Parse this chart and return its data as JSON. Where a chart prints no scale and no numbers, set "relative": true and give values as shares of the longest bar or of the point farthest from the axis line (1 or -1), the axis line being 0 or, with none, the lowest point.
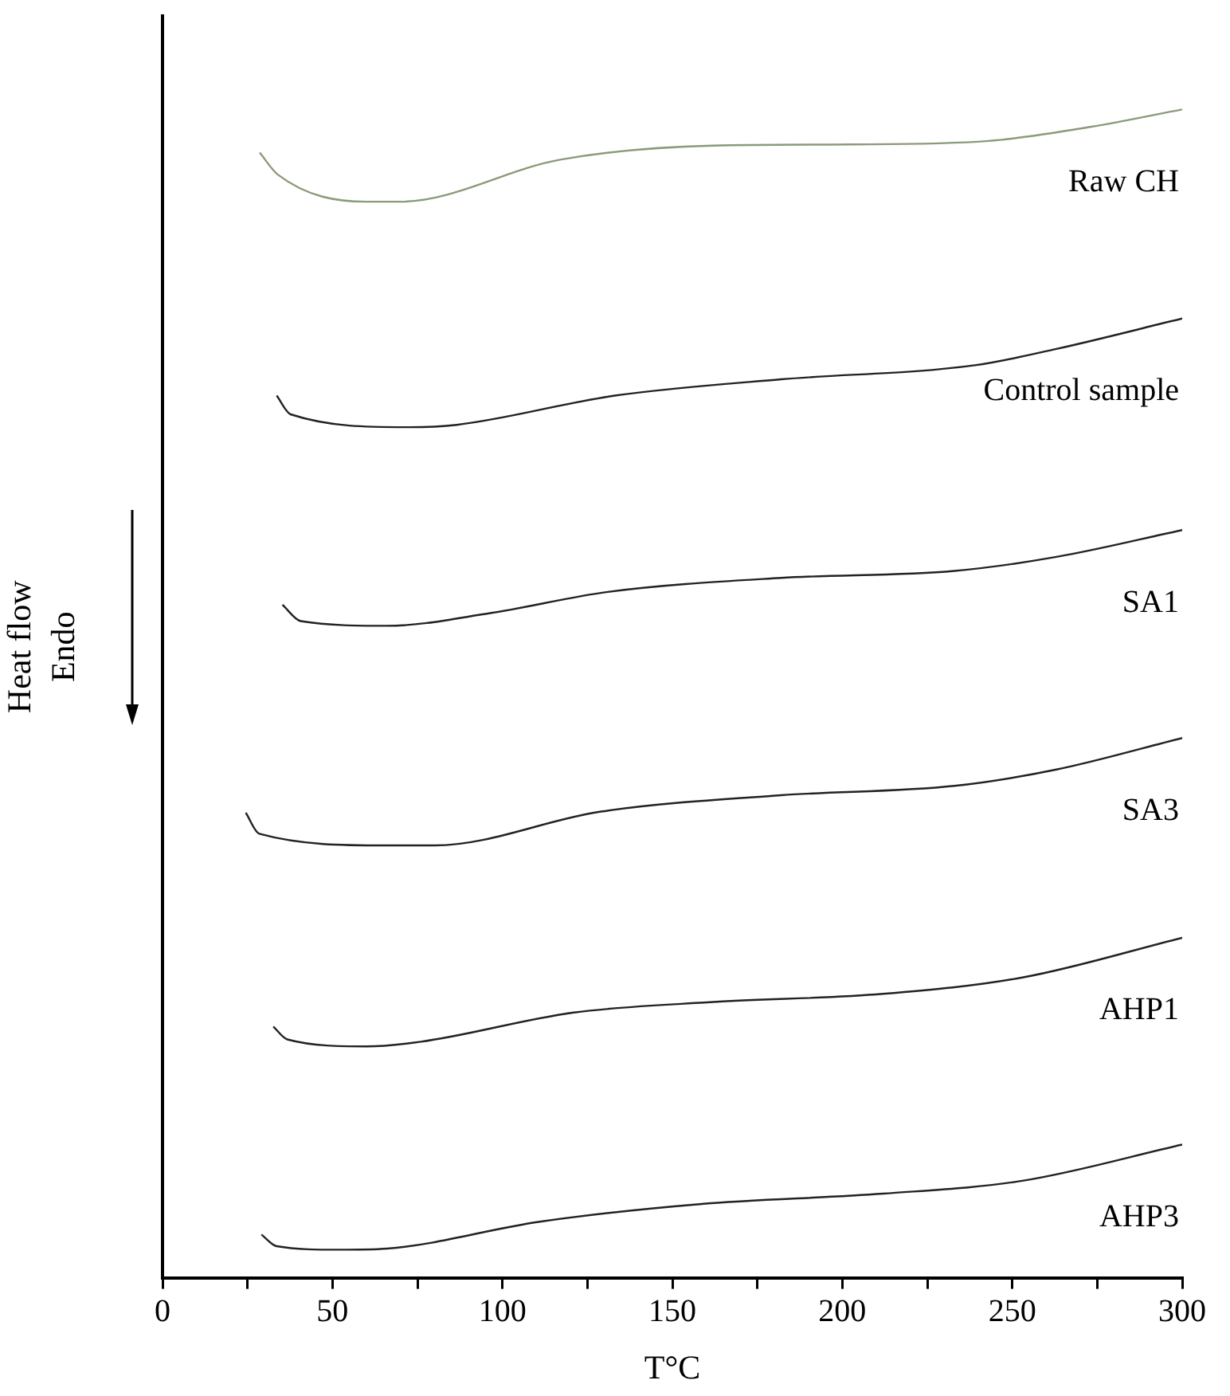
{
  "chart_data": {
    "type": "line",
    "xlabel": "T°C",
    "ylabel": "Heat flow\nEndo",
    "relative": true,
    "legend": false,
    "grid": false,
    "marker": "none",
    "line_style": "solid",
    "xlim": [
      0,
      300
    ],
    "xticks": [
      0,
      {
        "value": 25,
        "label": null
      },
      50,
      {
        "value": 75,
        "label": null
      },
      100,
      {
        "value": 125,
        "label": null
      },
      150,
      {
        "value": 175,
        "label": null
      },
      200,
      {
        "value": 225,
        "label": null
      },
      250,
      {
        "value": 275,
        "label": null
      },
      300
    ],
    "series": [
      {
        "name": "Raw CH",
        "color": "#8a9a7a",
        "x": [
          28.6,
          34,
          60,
          70,
          117,
          162,
          202,
          243,
          273,
          300
        ],
        "values": [
          0.963,
          0.944,
          0.921,
          0.921,
          0.957,
          0.969,
          0.97,
          0.973,
          0.985,
          1
        ]
      },
      {
        "name": "Control sample",
        "color": "#222222",
        "x": [
          33.6,
          37.7,
          72.3,
          86.5,
          133,
          182,
          239,
          263,
          300
        ],
        "values": [
          0.755,
          0.739,
          0.728,
          0.73,
          0.755,
          0.769,
          0.781,
          0.795,
          0.821
        ]
      },
      {
        "name": "SA1",
        "color": "#222222",
        "x": [
          35.3,
          40.7,
          66,
          96.7,
          131,
          182,
          233,
          263,
          300
        ],
        "values": [
          0.576,
          0.562,
          0.558,
          0.569,
          0.587,
          0.599,
          0.605,
          0.617,
          0.64
        ]
      },
      {
        "name": "SA3",
        "color": "#222222",
        "x": [
          24.5,
          28.5,
          66,
          80,
          129,
          182,
          233,
          263,
          300
        ],
        "values": [
          0.398,
          0.38,
          0.37,
          0.37,
          0.399,
          0.413,
          0.421,
          0.435,
          0.462
        ]
      },
      {
        "name": "AHP1",
        "color": "#222222",
        "x": [
          32.6,
          36.7,
          60,
          76,
          121,
          162,
          212,
          253,
          300
        ],
        "values": [
          0.215,
          0.204,
          0.198,
          0.202,
          0.227,
          0.236,
          0.243,
          0.257,
          0.291
        ]
      },
      {
        "name": "AHP3",
        "color": "#222222",
        "x": [
          29.1,
          33.6,
          51.9,
          66,
          111,
          158,
          212,
          253,
          300
        ],
        "values": [
          0.037,
          0.027,
          0.024,
          0.025,
          0.048,
          0.063,
          0.072,
          0.083,
          0.114
        ]
      }
    ]
  }
}
